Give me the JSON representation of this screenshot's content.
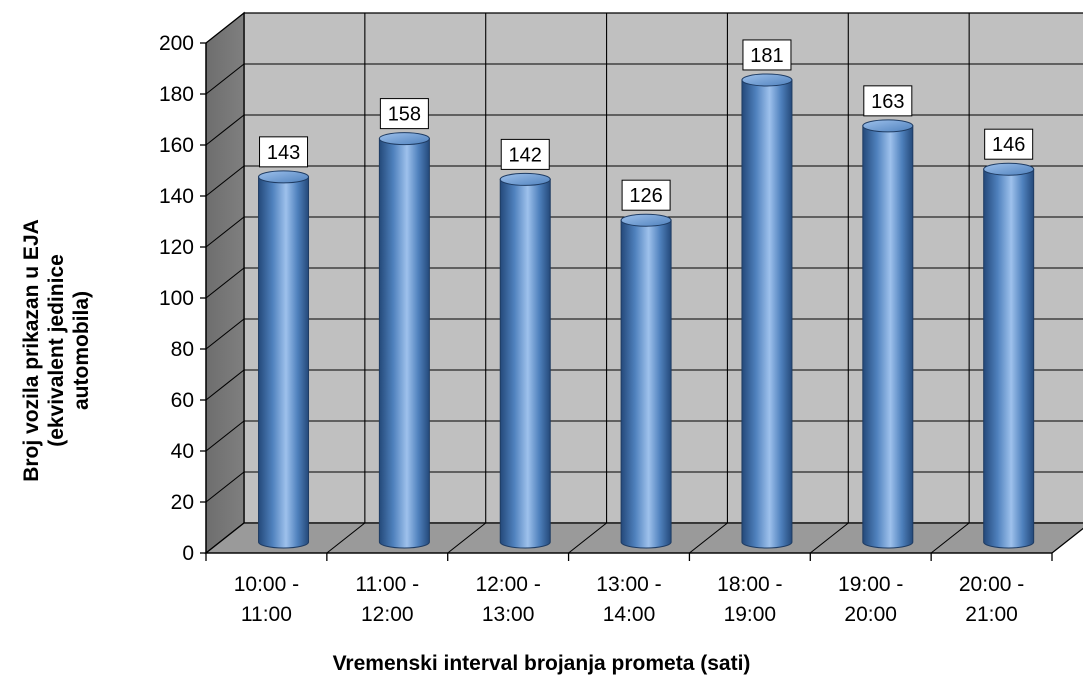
{
  "chart_data": {
    "type": "bar",
    "categories": [
      [
        "10:00 -",
        "11:00"
      ],
      [
        "11:00 -",
        "12:00"
      ],
      [
        "12:00 -",
        "13:00"
      ],
      [
        "13:00 -",
        "14:00"
      ],
      [
        "18:00 -",
        "19:00"
      ],
      [
        "19:00 -",
        "20:00"
      ],
      [
        "20:00 -",
        "21:00"
      ]
    ],
    "values": [
      143,
      158,
      142,
      126,
      181,
      163,
      146
    ],
    "ylim": [
      0,
      200
    ],
    "ytick_step": 20,
    "ylabel_lines": [
      "Broj vozila prikazan u EJA",
      "(ekvivalent jedinice",
      "automobila)"
    ],
    "xlabel": "Vremenski interval brojanja prometa (sati)",
    "grid": true,
    "data_labels": true,
    "style": "3d-cylinder",
    "colors": {
      "bar": "#4f81bd",
      "bar_dark": "#24497a",
      "bar_light": "#9ec1ec",
      "wall": "#c0c0c0",
      "side_wall": "#7f7f7f",
      "floor": "#9a9a9a"
    }
  }
}
